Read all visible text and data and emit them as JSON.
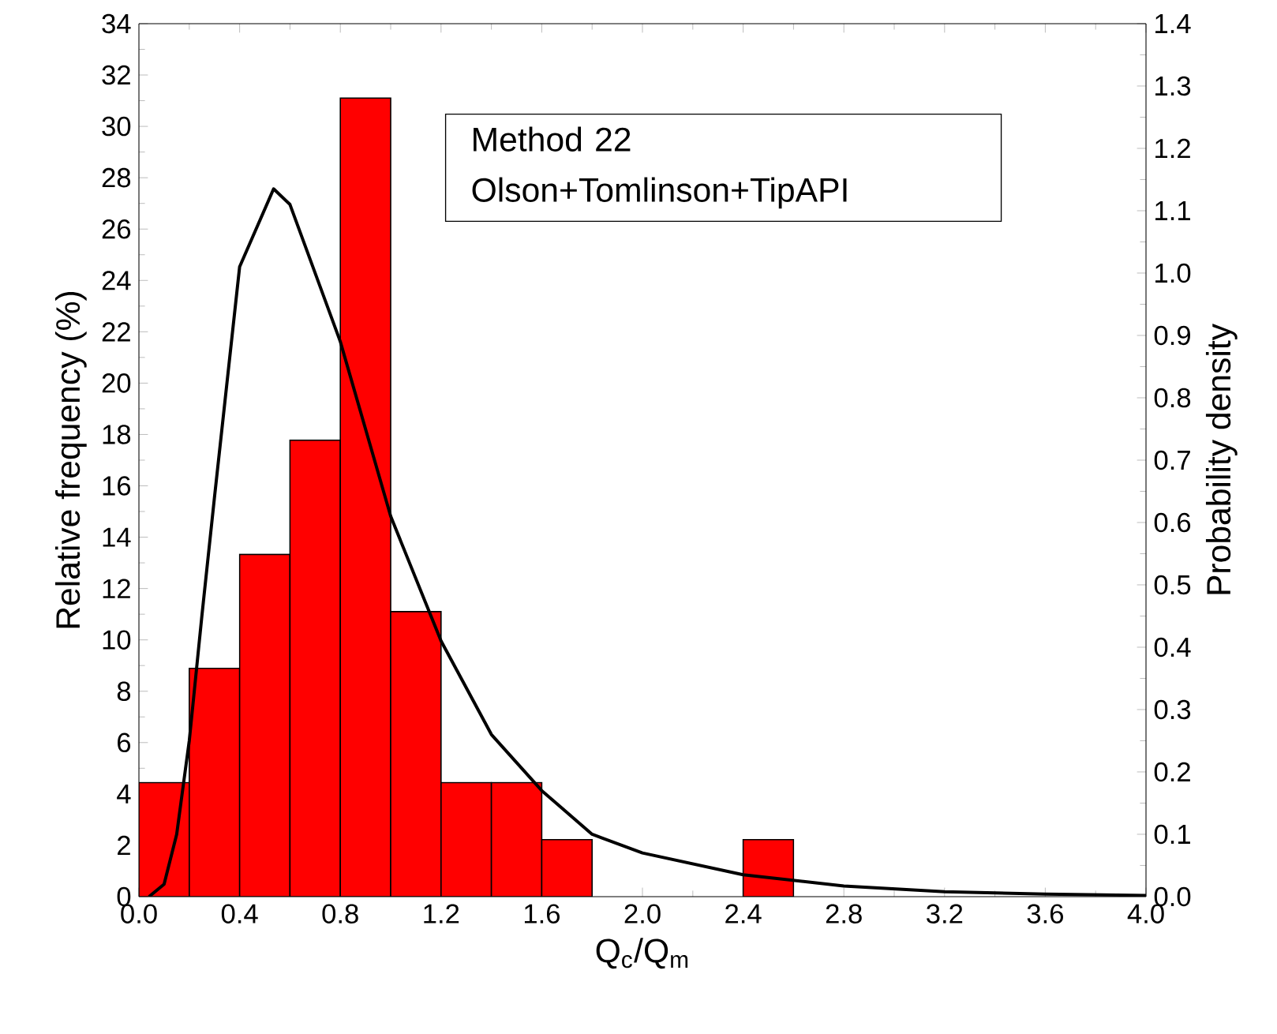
{
  "chart_data": {
    "type": "histogram",
    "xlabel": "Q$_{c}$/Q$_{m}$",
    "ylabel": "Relative frequency (%)",
    "y2label": "Probability density",
    "annotations": [
      "Method 22",
      "Olson+Tomlinson+TipAPI"
    ],
    "bins": [
      0.0,
      0.2,
      0.4,
      0.6,
      0.8,
      1.0,
      1.2,
      1.4,
      1.6,
      1.8,
      2.0,
      2.2,
      2.4,
      2.6
    ],
    "series": [
      {
        "color": "#ff0000",
        "values": [
          4.44,
          8.89,
          13.33,
          17.78,
          31.1,
          11.1,
          4.44,
          4.44,
          2.22,
          0,
          0,
          0,
          2.22
        ]
      },
      {
        "type": "line",
        "axis": "y2",
        "color": "#000000",
        "x": [
          0.04,
          0.1,
          0.15,
          0.2,
          0.25,
          0.3,
          0.4,
          0.535,
          0.6,
          0.8,
          1.0,
          1.2,
          1.4,
          1.6,
          1.8,
          2.0,
          2.4,
          2.8,
          3.2,
          3.6,
          4.0
        ],
        "values": [
          0,
          0.02,
          0.1,
          0.25,
          0.45,
          0.64,
          1.01,
          1.135,
          1.11,
          0.89,
          0.61,
          0.41,
          0.26,
          0.17,
          0.1,
          0.07,
          0.035,
          0.017,
          0.008,
          0.004,
          0.002
        ]
      }
    ],
    "xlim": [
      0,
      4.0
    ],
    "ylim": [
      0,
      34
    ],
    "y2lim": [
      0,
      1.4
    ],
    "xticks": [
      {
        "value": 0,
        "label": "0.0"
      },
      0.4,
      0.8,
      1.2,
      1.6,
      {
        "value": 2.0,
        "label": "2.0"
      },
      2.4,
      2.8,
      3.2,
      3.6,
      {
        "value": 4.0,
        "label": "4.0"
      }
    ],
    "yticks": [
      0,
      2,
      4,
      6,
      8,
      10,
      12,
      14,
      16,
      18,
      20,
      22,
      24,
      26,
      28,
      30,
      32,
      34
    ],
    "y2ticks": [
      {
        "value": 0,
        "label": "0.0"
      },
      0.1,
      0.2,
      0.3,
      0.4,
      0.5,
      0.6,
      0.7,
      0.8,
      0.9,
      {
        "value": 1.0,
        "label": "1.0"
      },
      1.1,
      1.2,
      1.3,
      1.4
    ],
    "grid": false
  }
}
